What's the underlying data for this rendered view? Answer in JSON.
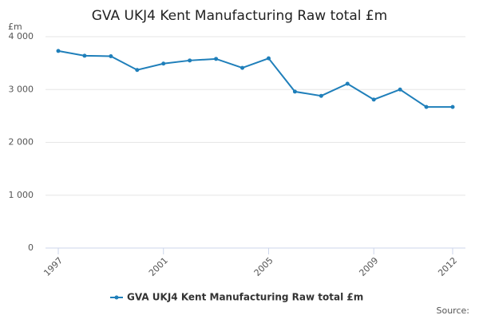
{
  "chart_data": {
    "type": "line",
    "title": "GVA UKJ4 Kent Manufacturing Raw total £m",
    "y_label": "£m",
    "source": "Source:",
    "x": [
      1997,
      1998,
      1999,
      2000,
      2001,
      2002,
      2003,
      2004,
      2005,
      2006,
      2007,
      2008,
      2009,
      2010,
      2011,
      2012
    ],
    "series": [
      {
        "name": "GVA UKJ4 Kent Manufacturing Raw total £m",
        "color": "#1f7fba",
        "values": [
          3730,
          3640,
          3630,
          3370,
          3490,
          3550,
          3580,
          3410,
          3590,
          2960,
          2880,
          3110,
          2810,
          3000,
          2670,
          2670
        ]
      }
    ],
    "xlim": [
      1997,
      2012
    ],
    "xticks": [
      1997,
      2001,
      2005,
      2009,
      2012
    ],
    "ylim": [
      0,
      4000
    ],
    "yticks": [
      0,
      {
        "value": 1000,
        "label": "1 000"
      },
      {
        "value": 2000,
        "label": "2 000"
      },
      {
        "value": 3000,
        "label": "3 000"
      },
      {
        "value": 4000,
        "label": "4 000"
      }
    ],
    "grid": true
  }
}
